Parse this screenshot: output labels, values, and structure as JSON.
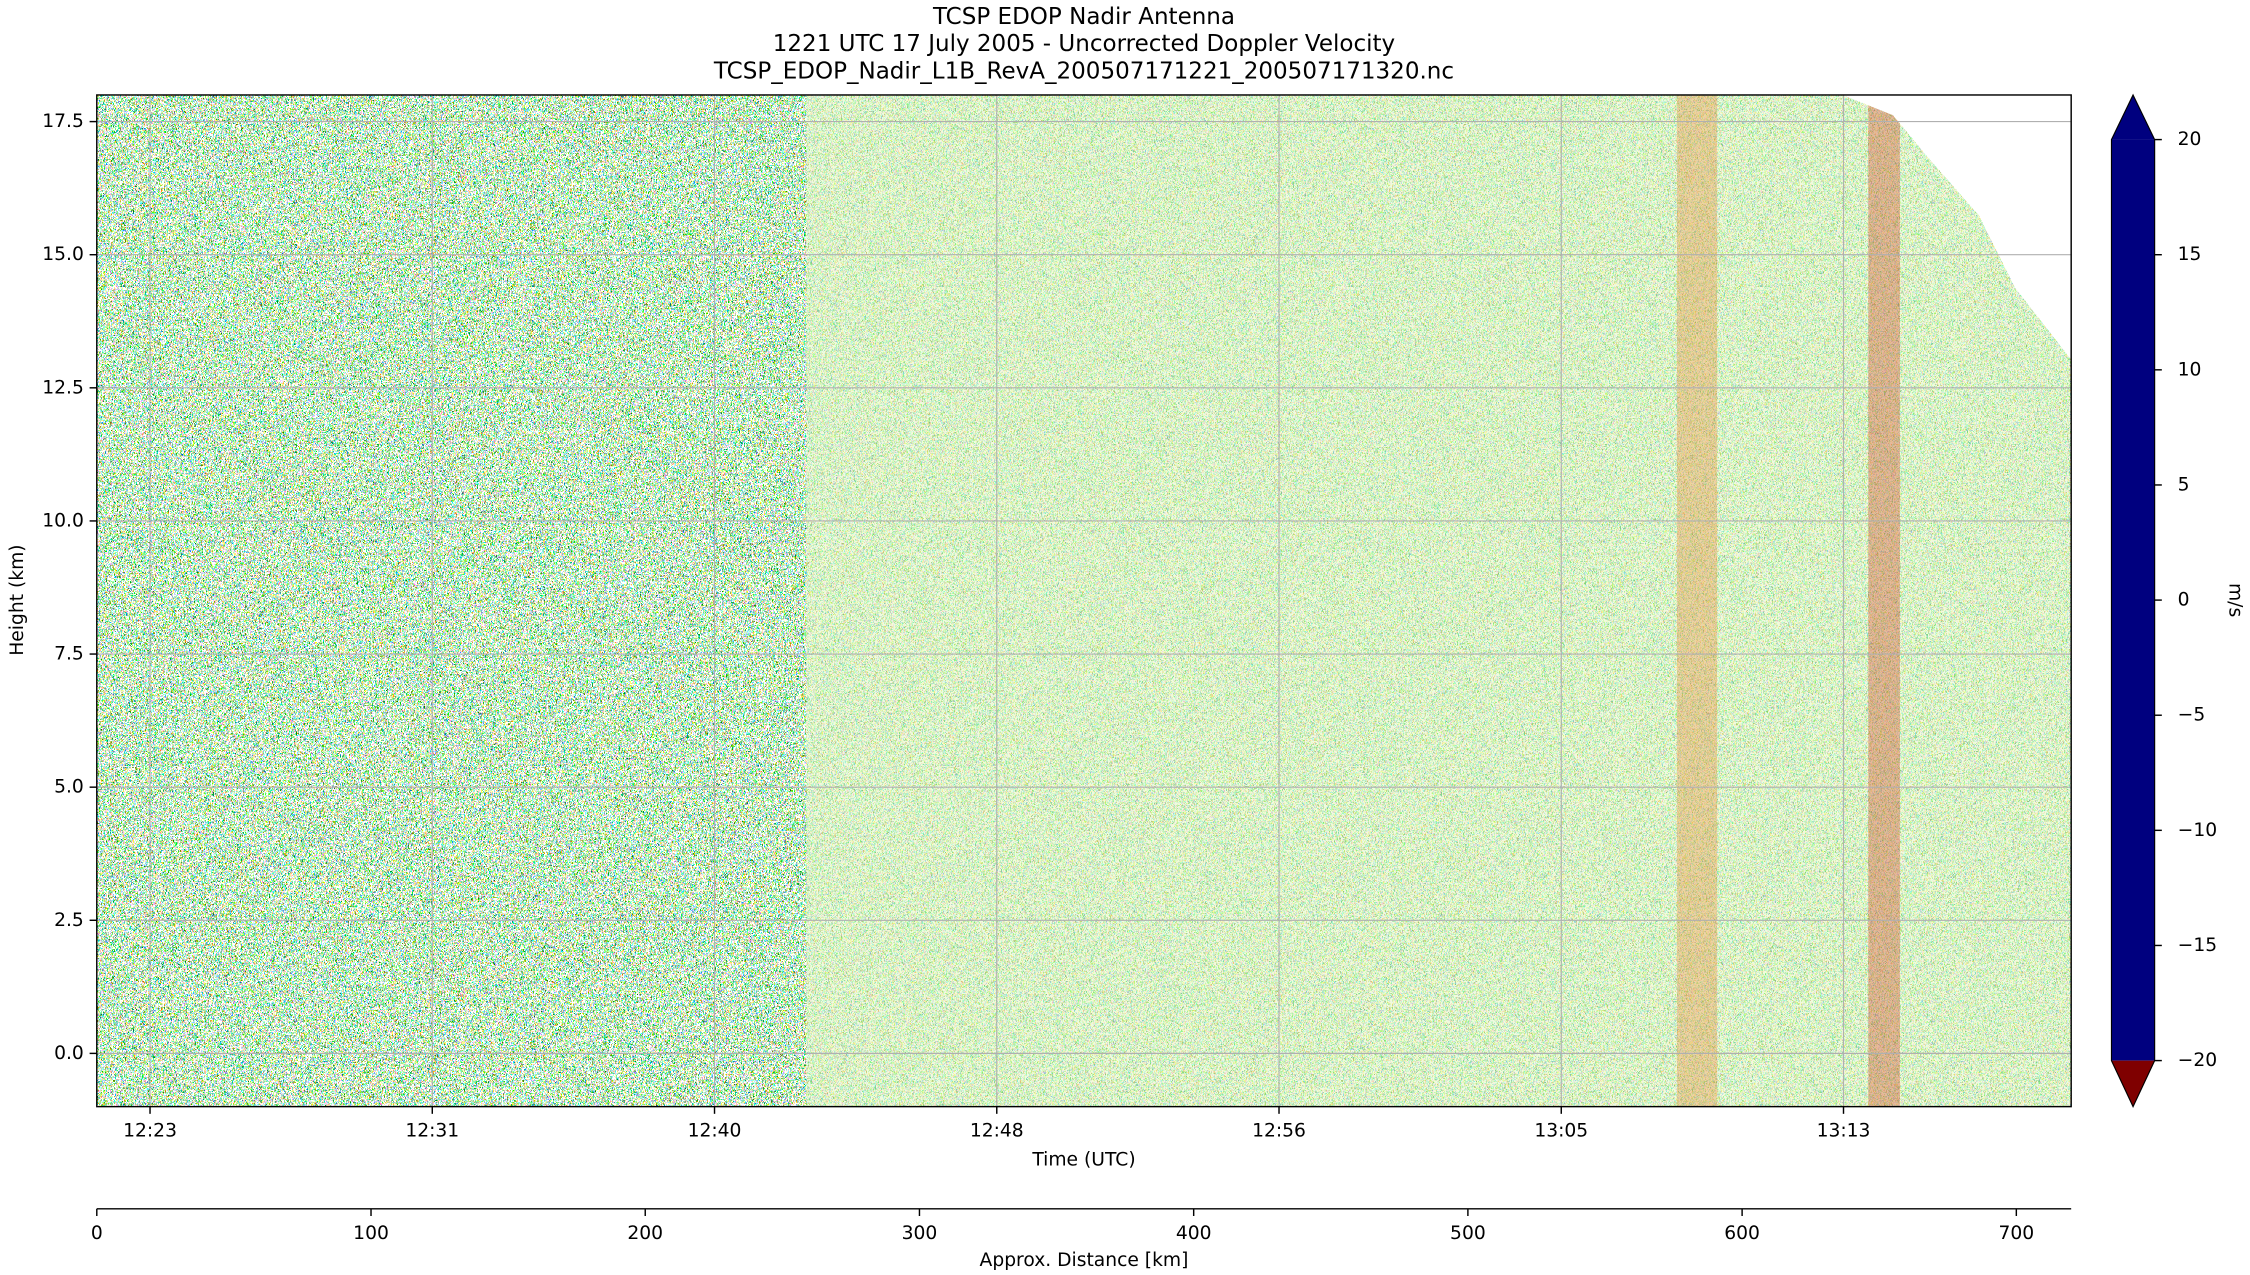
{
  "chart_data": {
    "type": "heatmap",
    "title": [
      "TCSP EDOP Nadir Antenna",
      "1221 UTC 17 July 2005 - Uncorrected Doppler Velocity",
      "TCSP_EDOP_Nadir_L1B_RevA_200507171221_200507171320.nc"
    ],
    "x_label": "Time (UTC)",
    "y_label": "Height (km)",
    "x2_label": "Approx. Distance [km]",
    "colorbar_label": "m/s",
    "colormap": "jet",
    "grid": true,
    "xlim": [
      741.61,
      800.58
    ],
    "xticks": [
      {
        "value": 743.2,
        "label": "12:23"
      },
      {
        "value": 751.63,
        "label": "12:31"
      },
      {
        "value": 760.06,
        "label": "12:40"
      },
      {
        "value": 768.49,
        "label": "12:48"
      },
      {
        "value": 776.92,
        "label": "12:56"
      },
      {
        "value": 785.35,
        "label": "13:05"
      },
      {
        "value": 793.78,
        "label": "13:13"
      }
    ],
    "ylim": [
      -1.0,
      18.0
    ],
    "yticks": [
      {
        "value": 0,
        "label": "0.0"
      },
      2.5,
      {
        "value": 5,
        "label": "5.0"
      },
      7.5,
      {
        "value": 10,
        "label": "10.0"
      },
      12.5,
      {
        "value": 15,
        "label": "15.0"
      },
      17.5
    ],
    "x2lim": [
      0,
      720
    ],
    "x2ticks": [
      0,
      100,
      200,
      300,
      400,
      500,
      600,
      700
    ],
    "clim": [
      -20,
      20
    ],
    "cticks": [
      {
        "value": -20,
        "label": "−20"
      },
      {
        "value": -15,
        "label": "−15"
      },
      {
        "value": -10,
        "label": "−10"
      },
      {
        "value": -5,
        "label": "−5"
      },
      0,
      5,
      10,
      15,
      20
    ]
  }
}
